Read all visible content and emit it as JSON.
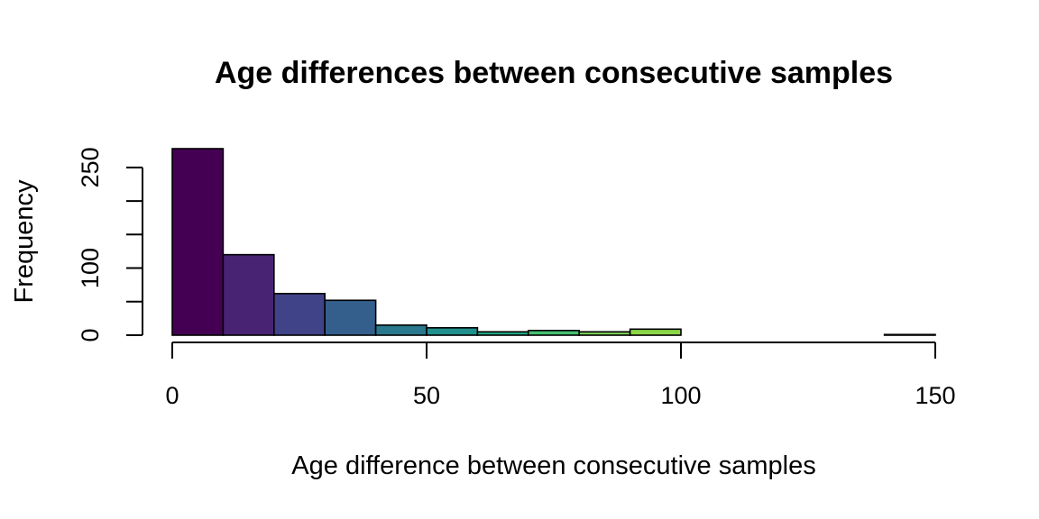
{
  "chart_data": {
    "type": "bar",
    "subtype": "histogram",
    "title": "Age differences between consecutive samples",
    "xlabel": "Age difference between consecutive samples",
    "ylabel": "Frequency",
    "bin_width": 10,
    "bins": [
      {
        "x0": 0,
        "x1": 10,
        "value": 278,
        "color": "#440154"
      },
      {
        "x0": 10,
        "x1": 20,
        "value": 120,
        "color": "#482374"
      },
      {
        "x0": 20,
        "x1": 30,
        "value": 62,
        "color": "#404387"
      },
      {
        "x0": 30,
        "x1": 40,
        "value": 52,
        "color": "#345F8D"
      },
      {
        "x0": 40,
        "x1": 50,
        "value": 15,
        "color": "#29788E"
      },
      {
        "x0": 50,
        "x1": 60,
        "value": 11,
        "color": "#20908D"
      },
      {
        "x0": 60,
        "x1": 70,
        "value": 5,
        "color": "#22A884"
      },
      {
        "x0": 70,
        "x1": 80,
        "value": 7,
        "color": "#44BF70"
      },
      {
        "x0": 80,
        "x1": 90,
        "value": 5,
        "color": "#7AD151"
      },
      {
        "x0": 90,
        "x1": 100,
        "value": 9,
        "color": "#8BD646"
      },
      {
        "x0": 100,
        "x1": 110,
        "value": 0,
        "color": "#A5DB36"
      },
      {
        "x0": 110,
        "x1": 120,
        "value": 0,
        "color": "#C2DF23"
      },
      {
        "x0": 120,
        "x1": 130,
        "value": 0,
        "color": "#DFE318"
      },
      {
        "x0": 130,
        "x1": 140,
        "value": 0,
        "color": "#F0E51D"
      },
      {
        "x0": 140,
        "x1": 150,
        "value": 1,
        "color": "#FDE725"
      }
    ],
    "xlim": [
      0,
      150
    ],
    "ylim": [
      0,
      278
    ],
    "x_ticks": [
      0,
      50,
      100,
      150
    ],
    "y_ticks": [
      0,
      50,
      100,
      150,
      200,
      250
    ],
    "y_tick_labels": [
      "0",
      "",
      "100",
      "",
      "",
      "250"
    ],
    "grid": false,
    "legend": "none"
  }
}
